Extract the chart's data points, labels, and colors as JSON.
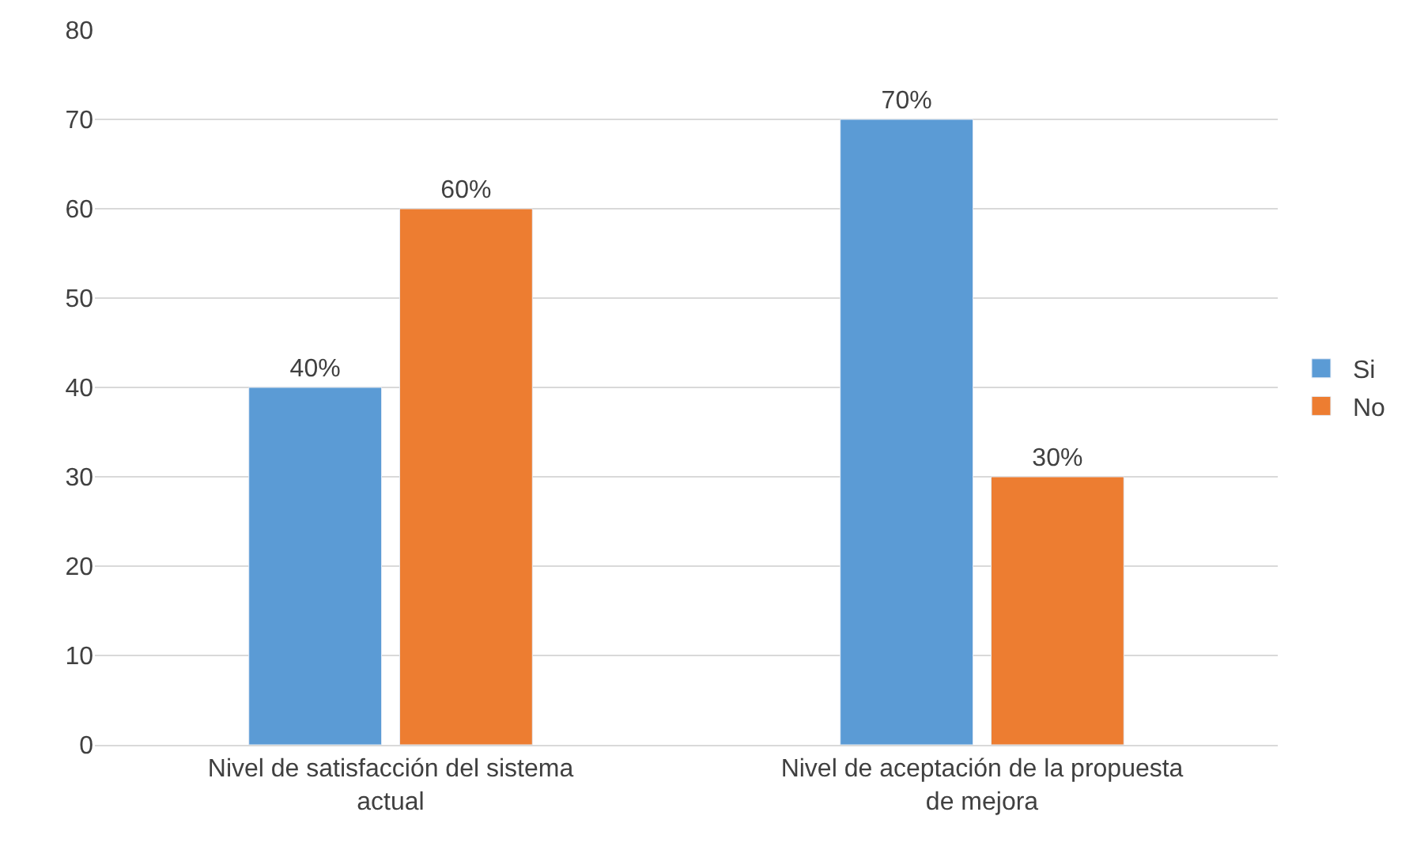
{
  "chart_data": {
    "type": "bar",
    "categories": [
      "Nivel de satisfacción del sistema actual",
      "Nivel de aceptación de la propuesta de mejora"
    ],
    "series": [
      {
        "name": "Si",
        "color": "#5b9bd5",
        "values": [
          40,
          70
        ],
        "value_labels": [
          "40%",
          "70%"
        ]
      },
      {
        "name": "No",
        "color": "#ed7d31",
        "values": [
          60,
          30
        ],
        "value_labels": [
          "60%",
          "30%"
        ]
      }
    ],
    "ylim": [
      0,
      80
    ],
    "yticks": [
      0,
      10,
      20,
      30,
      40,
      50,
      60,
      70,
      80
    ],
    "grid": "y",
    "legend": "right"
  }
}
